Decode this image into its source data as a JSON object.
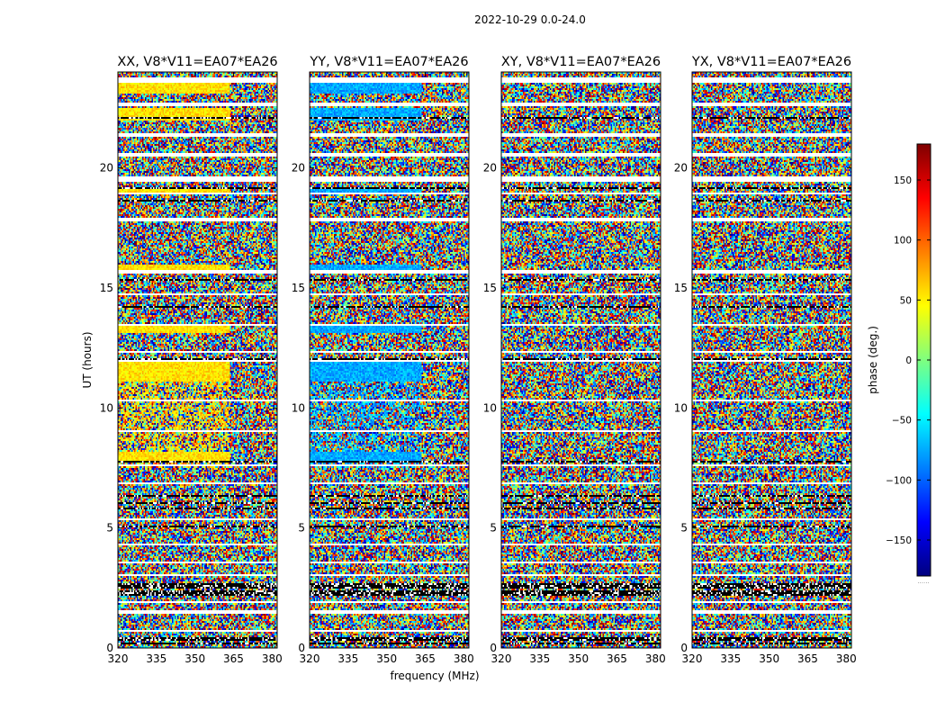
{
  "chart_data": {
    "type": "heatmap",
    "suptitle": "2022-10-29 0.0-24.0",
    "xlabel": "frequency (MHz)",
    "ylabel": "UT (hours)",
    "colorbar_label": "phase (deg.)",
    "xlim": [
      320,
      382
    ],
    "xticks": [
      "320",
      "335",
      "350",
      "365",
      "380"
    ],
    "xtick_values": [
      320,
      335,
      350,
      365,
      380
    ],
    "ylim": [
      0,
      24
    ],
    "yticks": [
      "0",
      "5",
      "10",
      "15",
      "20"
    ],
    "ytick_values": [
      0,
      5,
      10,
      15,
      20
    ],
    "clim": [
      -180,
      180
    ],
    "colorbar_ticks": [
      "−150",
      "−100",
      "−50",
      "0",
      "50",
      "100",
      "150"
    ],
    "colorbar_tick_values": [
      -150,
      -100,
      -50,
      0,
      50,
      100,
      150
    ],
    "colormap": [
      "#00007f",
      "#0000ff",
      "#007fff",
      "#00ffff",
      "#7fff7f",
      "#ffff00",
      "#ff7f00",
      "#ff0000",
      "#7f0000"
    ],
    "colorbar_footer": "......",
    "panels": [
      {
        "title": "XX, V8*V11=EA07*EA26",
        "dominant_phase_deg": 55
      },
      {
        "title": "YY, V8*V11=EA07*EA26",
        "dominant_phase_deg": -75
      },
      {
        "title": "XY, V8*V11=EA07*EA26",
        "dominant_phase_deg": null
      },
      {
        "title": "YX, V8*V11=EA07*EA26",
        "dominant_phase_deg": null
      }
    ]
  }
}
